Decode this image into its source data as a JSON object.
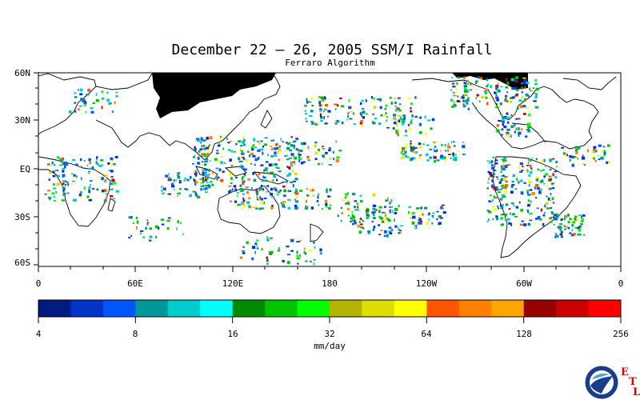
{
  "title": "December 22 – 26, 2005 SSM/I Rainfall",
  "subtitle": "Ferraro Algorithm",
  "map": {
    "lat_labels": [
      "60N",
      "30N",
      "EQ",
      "30S",
      "60S"
    ],
    "lon_labels": [
      "0",
      "60E",
      "120E",
      "180",
      "120W",
      "60W",
      "0"
    ]
  },
  "colorbar": {
    "tick_labels": [
      "4",
      "8",
      "16",
      "32",
      "64",
      "128",
      "256"
    ],
    "units": "mm/day",
    "colors": [
      "#001a80",
      "#0033c8",
      "#0055ff",
      "#009999",
      "#00cccc",
      "#00ffff",
      "#008c00",
      "#00c400",
      "#00ff00",
      "#b3b300",
      "#dddd00",
      "#ffff00",
      "#ff5500",
      "#ff8000",
      "#ffa500",
      "#990000",
      "#cc0000",
      "#ff0000"
    ]
  },
  "logo": {
    "name": "NOAA",
    "etl_letters": [
      "E",
      "T",
      "L"
    ]
  }
}
